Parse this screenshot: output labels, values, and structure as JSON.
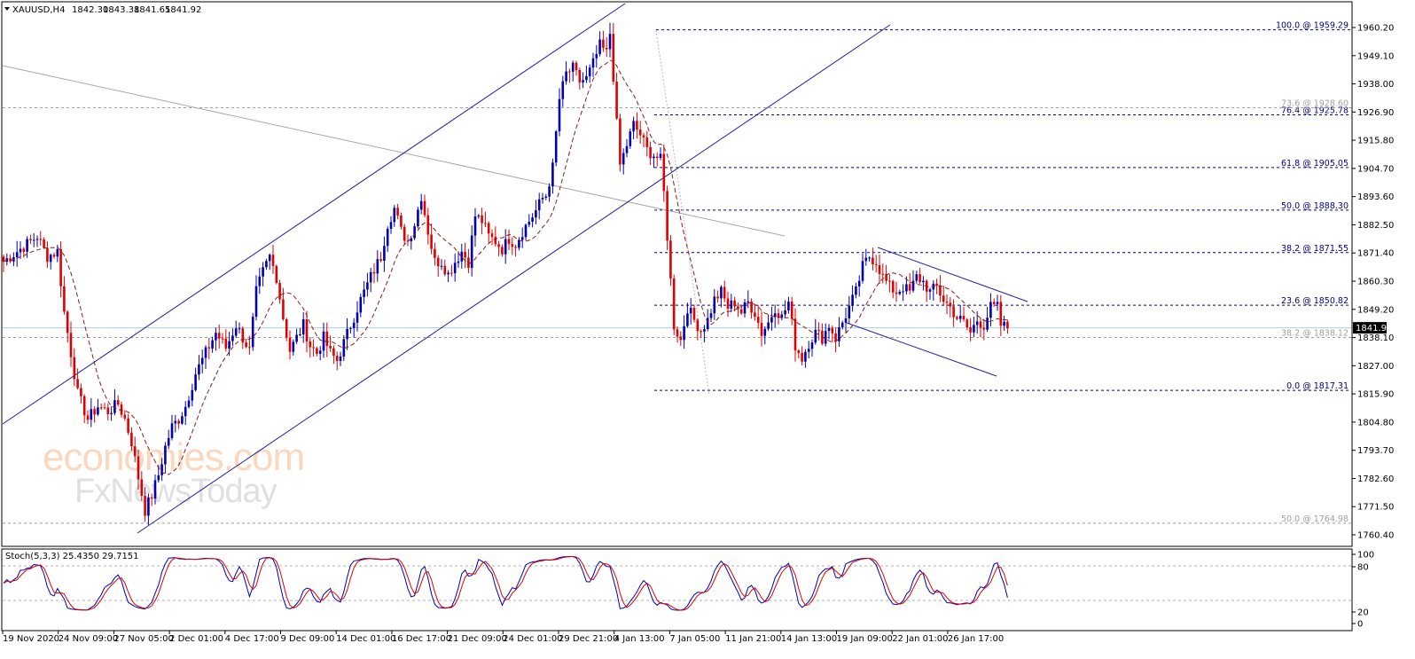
{
  "chart_data": {
    "type": "candlestick",
    "symbol_header": "XAUUSD,H4",
    "ohlc_header": {
      "open": "1842.30",
      "high": "1843.38",
      "low": "1841.65",
      "close": "1841.92"
    },
    "current_price": "1841.92",
    "y_range": [
      1755.0,
      1967.0
    ],
    "price_ticks": [
      "1960.20",
      "1949.10",
      "1938.00",
      "1926.90",
      "1915.80",
      "1904.70",
      "1893.60",
      "1882.50",
      "1871.40",
      "1860.30",
      "1849.20",
      "1838.10",
      "1827.00",
      "1815.90",
      "1804.80",
      "1793.70",
      "1782.60",
      "1771.50",
      "1760.40"
    ],
    "x_labels": [
      "19 Nov 2020",
      "24 Nov 09:00",
      "27 Nov 05:00",
      "2 Dec 01:00",
      "4 Dec 17:00",
      "9 Dec 09:00",
      "14 Dec 01:00",
      "16 Dec 17:00",
      "21 Dec 09:00",
      "24 Dec 01:00",
      "29 Dec 21:00",
      "4 Jan 13:00",
      "7 Jan 05:00",
      "11 Jan 21:00",
      "14 Jan 13:00",
      "19 Jan 09:00",
      "22 Jan 01:00",
      "26 Jan 17:00"
    ],
    "price_path": [
      [
        0,
        1868
      ],
      [
        5,
        1873
      ],
      [
        10,
        1878
      ],
      [
        13,
        1870
      ],
      [
        16,
        1872
      ],
      [
        18,
        1848
      ],
      [
        20,
        1832
      ],
      [
        22,
        1816
      ],
      [
        25,
        1806
      ],
      [
        28,
        1811
      ],
      [
        31,
        1809
      ],
      [
        34,
        1812
      ],
      [
        36,
        1806
      ],
      [
        38,
        1797
      ],
      [
        40,
        1783
      ],
      [
        42,
        1770
      ],
      [
        44,
        1776
      ],
      [
        46,
        1784
      ],
      [
        48,
        1795
      ],
      [
        50,
        1803
      ],
      [
        52,
        1806
      ],
      [
        54,
        1811
      ],
      [
        57,
        1824
      ],
      [
        60,
        1832
      ],
      [
        63,
        1840
      ],
      [
        66,
        1834
      ],
      [
        69,
        1843
      ],
      [
        71,
        1838
      ],
      [
        73,
        1833
      ],
      [
        75,
        1856
      ],
      [
        77,
        1864
      ],
      [
        79,
        1870
      ],
      [
        81,
        1862
      ],
      [
        83,
        1846
      ],
      [
        85,
        1833
      ],
      [
        87,
        1838
      ],
      [
        89,
        1843
      ],
      [
        91,
        1835
      ],
      [
        93,
        1832
      ],
      [
        95,
        1838
      ],
      [
        97,
        1832
      ],
      [
        99,
        1829
      ],
      [
        101,
        1836
      ],
      [
        103,
        1843
      ],
      [
        106,
        1853
      ],
      [
        109,
        1862
      ],
      [
        112,
        1870
      ],
      [
        114,
        1883
      ],
      [
        116,
        1889
      ],
      [
        118,
        1880
      ],
      [
        120,
        1876
      ],
      [
        122,
        1883
      ],
      [
        124,
        1894
      ],
      [
        126,
        1880
      ],
      [
        128,
        1868
      ],
      [
        130,
        1868
      ],
      [
        132,
        1863
      ],
      [
        134,
        1868
      ],
      [
        136,
        1872
      ],
      [
        138,
        1868
      ],
      [
        140,
        1886
      ],
      [
        142,
        1884
      ],
      [
        144,
        1878
      ],
      [
        146,
        1876
      ],
      [
        148,
        1873
      ],
      [
        150,
        1877
      ],
      [
        152,
        1875
      ],
      [
        154,
        1880
      ],
      [
        156,
        1884
      ],
      [
        158,
        1888
      ],
      [
        160,
        1893
      ],
      [
        161,
        1894
      ],
      [
        163,
        1905
      ],
      [
        165,
        1932
      ],
      [
        167,
        1942
      ],
      [
        169,
        1944
      ],
      [
        171,
        1939
      ],
      [
        173,
        1940
      ],
      [
        175,
        1946
      ],
      [
        177,
        1953
      ],
      [
        179,
        1950
      ],
      [
        180,
        1958
      ],
      [
        181,
        1941
      ],
      [
        182,
        1922
      ],
      [
        183,
        1906
      ],
      [
        185,
        1914
      ],
      [
        187,
        1922
      ],
      [
        189,
        1918
      ],
      [
        191,
        1912
      ],
      [
        193,
        1910
      ],
      [
        195,
        1908
      ],
      [
        196,
        1895
      ],
      [
        197,
        1878
      ],
      [
        199,
        1843
      ],
      [
        201,
        1837
      ],
      [
        203,
        1850
      ],
      [
        205,
        1845
      ],
      [
        207,
        1841
      ],
      [
        209,
        1845
      ],
      [
        211,
        1853
      ],
      [
        213,
        1856
      ],
      [
        215,
        1850
      ],
      [
        217,
        1852
      ],
      [
        219,
        1848
      ],
      [
        221,
        1852
      ],
      [
        223,
        1848
      ],
      [
        225,
        1840
      ],
      [
        227,
        1844
      ],
      [
        229,
        1850
      ],
      [
        231,
        1846
      ],
      [
        233,
        1852
      ],
      [
        235,
        1835
      ],
      [
        237,
        1830
      ],
      [
        239,
        1836
      ],
      [
        241,
        1840
      ],
      [
        243,
        1838
      ],
      [
        245,
        1843
      ],
      [
        247,
        1838
      ],
      [
        249,
        1844
      ],
      [
        251,
        1850
      ],
      [
        253,
        1856
      ],
      [
        255,
        1866
      ],
      [
        257,
        1870
      ],
      [
        259,
        1868
      ],
      [
        261,
        1862
      ],
      [
        263,
        1858
      ],
      [
        265,
        1856
      ],
      [
        267,
        1858
      ],
      [
        269,
        1856
      ],
      [
        271,
        1862
      ],
      [
        273,
        1860
      ],
      [
        275,
        1856
      ],
      [
        277,
        1858
      ],
      [
        279,
        1853
      ],
      [
        281,
        1850
      ],
      [
        283,
        1846
      ],
      [
        285,
        1844
      ],
      [
        287,
        1840
      ],
      [
        289,
        1845
      ],
      [
        291,
        1843
      ],
      [
        293,
        1850
      ],
      [
        295,
        1850
      ],
      [
        296,
        1843
      ],
      [
        298,
        1842
      ]
    ],
    "moving_average": {
      "style": "dashed",
      "color": "#8b1a1a"
    },
    "fibonacci_levels": [
      {
        "label": "100.0 @ 1959.29",
        "price": 1959.29,
        "color": "#00007f"
      },
      {
        "label": "76.4 @ 1925.78",
        "price": 1925.78,
        "color": "#00007f"
      },
      {
        "label": "61.8 @ 1905.05",
        "price": 1905.05,
        "color": "#00007f"
      },
      {
        "label": "50.0 @ 1888.30",
        "price": 1888.3,
        "color": "#00007f"
      },
      {
        "label": "38.2 @ 1871.55",
        "price": 1871.55,
        "color": "#00007f"
      },
      {
        "label": "23.6 @ 1850.82",
        "price": 1850.82,
        "color": "#00007f"
      },
      {
        "label": "0.0 @ 1817.31",
        "price": 1817.31,
        "color": "#00007f"
      }
    ],
    "secondary_levels": [
      {
        "label": "73.6 @ 1928.60",
        "price": 1928.6,
        "color": "#a0a0a0"
      },
      {
        "label": "38.2 @ 1838.12",
        "price": 1838.12,
        "color": "#a0a0a0"
      },
      {
        "label": "50.0 @ 1764.98",
        "price": 1764.98,
        "color": "#a0a0a0"
      }
    ],
    "indicator": {
      "title": "Stoch(5,3,3) 25.4350 29.7151",
      "ticks": [
        "100",
        "80",
        "20",
        "0"
      ],
      "main_color": "#0000b0",
      "signal_color": "#e00000"
    },
    "colors": {
      "up": "#0000b0",
      "down": "#e00000",
      "channel": "#1e1e9e",
      "trend": "#a8a8a8",
      "current_price_line": "#a8d0e6",
      "price_label_bg": "#000000"
    }
  },
  "watermark": {
    "line1": "economies.com",
    "line2": "FxNewsToday"
  }
}
